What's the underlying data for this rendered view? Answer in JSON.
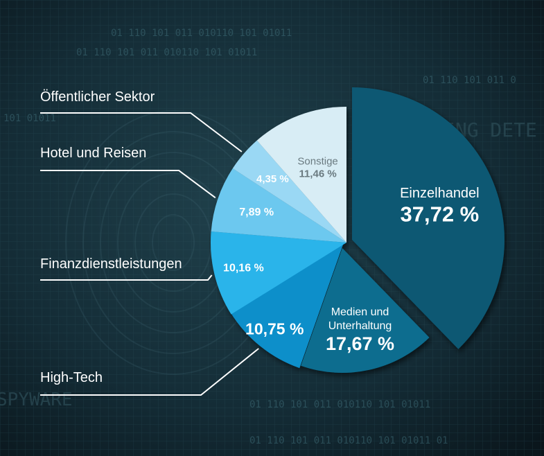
{
  "chart_data": {
    "type": "pie",
    "title": "",
    "categories": [
      "Einzelhandel",
      "Medien und Unterhaltung",
      "High-Tech",
      "Finanzdienstleistungen",
      "Hotel und Reisen",
      "Öffentlicher Sektor",
      "Sonstige"
    ],
    "values": [
      37.72,
      17.67,
      10.75,
      10.16,
      7.89,
      4.35,
      11.46
    ],
    "value_labels": [
      "37,72 %",
      "17,67 %",
      "10,75 %",
      "10,16 %",
      "7,89 %",
      "4,35 %",
      "11,46 %"
    ],
    "colors": [
      "#0a5873",
      "#0b6d8f",
      "#0f8fca",
      "#2ab4ea",
      "#6cc8ef",
      "#9ad8f4",
      "#d8edf5"
    ],
    "inside_names": [
      "Einzelhandel",
      "Medien und Unterhaltung",
      "",
      "",
      "",
      "",
      "Sonstige"
    ],
    "callout_labels": [
      "",
      "",
      "High-Tech",
      "Finanzdienstleistungen",
      "Hotel und Reisen",
      "Öffentlicher Sektor",
      ""
    ]
  },
  "background": {
    "binary_rows": [
      "01 110 101 011 010110 101 01011",
      "01 110 101 011 010110 101 01011",
      "01 110 101 011 0",
      "101 01011",
      "01 110 101 011 010110 101 01011",
      "01 110 101 011 010110 101 01011 01"
    ],
    "words": [
      "ING DETE",
      "SPYWARE"
    ]
  }
}
